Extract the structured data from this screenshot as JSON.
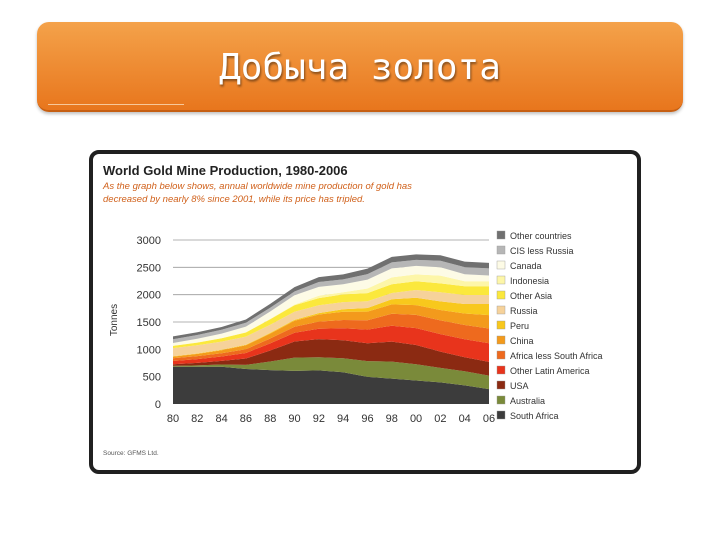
{
  "slide": {
    "title": "Добыча золота"
  },
  "figure": {
    "heading": "World Gold Mine Production, 1980-2006",
    "caption_line1": "As the graph below shows, annual worldwide mine production of gold has",
    "caption_line2": "decreased by nearly 8% since 2001, while its price has tripled.",
    "source": "Source: GFMS Ltd."
  },
  "chart_data": {
    "type": "area",
    "stacked": true,
    "title": "World Gold Mine Production, 1980-2006",
    "xlabel": "",
    "ylabel": "Tonnes",
    "ylim": [
      0,
      3000
    ],
    "yticks": [
      0,
      500,
      1000,
      1500,
      2000,
      2500,
      3000
    ],
    "x": [
      1980,
      1982,
      1984,
      1986,
      1988,
      1990,
      1992,
      1994,
      1996,
      1998,
      2000,
      2002,
      2004,
      2006
    ],
    "xtick_labels": [
      "80",
      "82",
      "84",
      "86",
      "88",
      "90",
      "92",
      "94",
      "96",
      "98",
      "00",
      "02",
      "04",
      "06"
    ],
    "grid": true,
    "legend_position": "right",
    "series": [
      {
        "name": "South Africa",
        "color": "#3c3c3c",
        "values": [
          680,
          680,
          683,
          640,
          620,
          605,
          614,
          580,
          496,
          465,
          430,
          395,
          340,
          272
        ]
      },
      {
        "name": "Australia",
        "color": "#7a8a3a",
        "values": [
          17,
          27,
          39,
          75,
          157,
          244,
          243,
          256,
          289,
          311,
          296,
          266,
          258,
          247
        ]
      },
      {
        "name": "USA",
        "color": "#8b2a12",
        "values": [
          30,
          45,
          66,
          118,
          201,
          294,
          330,
          331,
          326,
          366,
          353,
          298,
          258,
          252
        ]
      },
      {
        "name": "Other Latin America",
        "color": "#e8341c",
        "values": [
          60,
          70,
          80,
          100,
          130,
          160,
          190,
          220,
          250,
          290,
          310,
          320,
          330,
          340
        ]
      },
      {
        "name": "Africa less South Africa",
        "color": "#ee6a1e",
        "values": [
          50,
          55,
          60,
          70,
          90,
          110,
          130,
          150,
          170,
          220,
          240,
          250,
          260,
          270
        ]
      },
      {
        "name": "China",
        "color": "#f39a1c",
        "values": [
          30,
          40,
          55,
          70,
          90,
          110,
          130,
          150,
          160,
          170,
          180,
          190,
          210,
          245
        ]
      },
      {
        "name": "Peru",
        "color": "#f8c81c",
        "values": [
          5,
          7,
          8,
          10,
          12,
          15,
          25,
          45,
          65,
          94,
          133,
          157,
          173,
          203
        ]
      },
      {
        "name": "Russia",
        "color": "#f6d29a",
        "values": [
          150,
          150,
          150,
          150,
          150,
          150,
          146,
          132,
          123,
          115,
          143,
          170,
          165,
          165
        ]
      },
      {
        "name": "Other Asia",
        "color": "#fbe83c",
        "values": [
          40,
          50,
          60,
          75,
          100,
          120,
          130,
          140,
          150,
          160,
          160,
          160,
          160,
          160
        ]
      },
      {
        "name": "Indonesia",
        "color": "#fdf6a8",
        "values": [
          2,
          3,
          4,
          5,
          7,
          11,
          44,
          40,
          83,
          124,
          125,
          142,
          92,
          93
        ]
      },
      {
        "name": "Canada",
        "color": "#fdfbe6",
        "values": [
          52,
          65,
          83,
          103,
          135,
          169,
          160,
          146,
          164,
          166,
          156,
          152,
          129,
          104
        ]
      },
      {
        "name": "CIS less Russia",
        "color": "#b6b6b6",
        "values": [
          70,
          70,
          70,
          70,
          70,
          70,
          90,
          90,
          100,
          110,
          110,
          120,
          130,
          130
        ]
      },
      {
        "name": "Other countries",
        "color": "#707070",
        "values": [
          50,
          50,
          50,
          60,
          70,
          80,
          90,
          90,
          100,
          100,
          100,
          100,
          100,
          100
        ]
      }
    ]
  }
}
